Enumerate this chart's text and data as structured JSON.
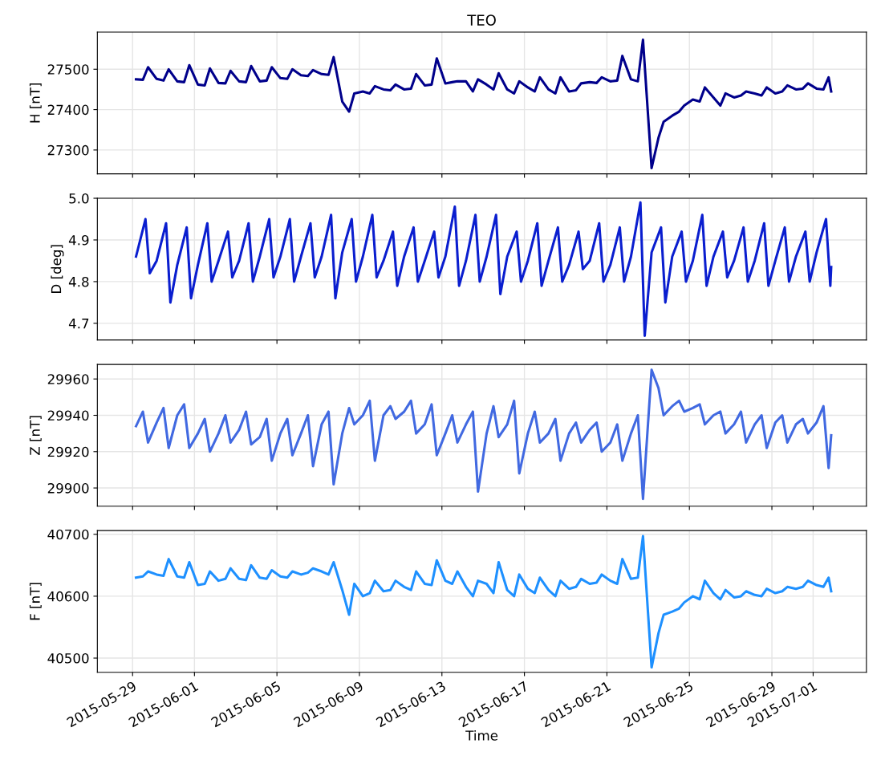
{
  "chart_data": [
    {
      "type": "line",
      "title": "TEO",
      "ylabel": "H [nT]",
      "tick_labels": "y",
      "grid": true,
      "marker": "none",
      "line_style": "solid",
      "xlim": [
        "2015-05-27T07:00",
        "2015-07-03T14:00"
      ],
      "xticks": [
        "2015-05-29",
        "2015-06-01",
        "2015-06-05",
        "2015-06-09",
        "2015-06-13",
        "2015-06-17",
        "2015-06-21",
        "2015-06-25",
        "2015-06-29",
        "2015-07-01"
      ],
      "ylim": [
        27241,
        27592
      ],
      "yticks": [
        27300,
        27400,
        27500
      ],
      "x": [
        "2015-05-29T04:00",
        "2015-05-29T12:00",
        "2015-05-29T18:00",
        "2015-05-30T04:00",
        "2015-05-30T12:00",
        "2015-05-30T18:00",
        "2015-05-31T04:00",
        "2015-05-31T12:00",
        "2015-05-31T18:00",
        "2015-06-01T04:00",
        "2015-06-01T12:00",
        "2015-06-01T18:00",
        "2015-06-02T04:00",
        "2015-06-02T12:00",
        "2015-06-02T18:00",
        "2015-06-03T04:00",
        "2015-06-03T12:00",
        "2015-06-03T18:00",
        "2015-06-04T04:00",
        "2015-06-04T12:00",
        "2015-06-04T18:00",
        "2015-06-05T04:00",
        "2015-06-05T12:00",
        "2015-06-05T18:00",
        "2015-06-06T04:00",
        "2015-06-06T12:00",
        "2015-06-06T18:00",
        "2015-06-07T04:00",
        "2015-06-07T12:00",
        "2015-06-07T18:00",
        "2015-06-08T04:00",
        "2015-06-08T12:00",
        "2015-06-08T18:00",
        "2015-06-09T04:00",
        "2015-06-09T12:00",
        "2015-06-09T18:00",
        "2015-06-10T04:00",
        "2015-06-10T12:00",
        "2015-06-10T18:00",
        "2015-06-11T04:00",
        "2015-06-11T12:00",
        "2015-06-11T18:00",
        "2015-06-12T04:00",
        "2015-06-12T12:00",
        "2015-06-12T18:00",
        "2015-06-13T04:00",
        "2015-06-13T12:00",
        "2015-06-13T18:00",
        "2015-06-14T04:00",
        "2015-06-14T12:00",
        "2015-06-14T18:00",
        "2015-06-15T04:00",
        "2015-06-15T12:00",
        "2015-06-15T18:00",
        "2015-06-16T04:00",
        "2015-06-16T12:00",
        "2015-06-16T18:00",
        "2015-06-17T04:00",
        "2015-06-17T12:00",
        "2015-06-17T18:00",
        "2015-06-18T04:00",
        "2015-06-18T12:00",
        "2015-06-18T18:00",
        "2015-06-19T04:00",
        "2015-06-19T12:00",
        "2015-06-19T18:00",
        "2015-06-20T04:00",
        "2015-06-20T12:00",
        "2015-06-20T18:00",
        "2015-06-21T04:00",
        "2015-06-21T12:00",
        "2015-06-21T18:00",
        "2015-06-22T04:00",
        "2015-06-22T12:00",
        "2015-06-22T18:00",
        "2015-06-23T04:00",
        "2015-06-23T12:00",
        "2015-06-23T18:00",
        "2015-06-24T04:00",
        "2015-06-24T12:00",
        "2015-06-24T18:00",
        "2015-06-25T04:00",
        "2015-06-25T12:00",
        "2015-06-25T18:00",
        "2015-06-26T04:00",
        "2015-06-26T12:00",
        "2015-06-26T18:00",
        "2015-06-27T04:00",
        "2015-06-27T12:00",
        "2015-06-27T18:00",
        "2015-06-28T04:00",
        "2015-06-28T12:00",
        "2015-06-28T18:00",
        "2015-06-29T04:00",
        "2015-06-29T12:00",
        "2015-06-29T18:00",
        "2015-06-30T04:00",
        "2015-06-30T12:00",
        "2015-06-30T18:00",
        "2015-07-01T04:00",
        "2015-07-01T12:00",
        "2015-07-01T18:00",
        "2015-07-01T21:00"
      ],
      "series": [
        {
          "color": "#00008b",
          "values": [
            27475,
            27474,
            27505,
            27476,
            27472,
            27500,
            27470,
            27468,
            27510,
            27462,
            27460,
            27502,
            27466,
            27465,
            27496,
            27470,
            27468,
            27508,
            27470,
            27472,
            27505,
            27478,
            27476,
            27500,
            27485,
            27483,
            27498,
            27488,
            27486,
            27530,
            27420,
            27395,
            27440,
            27445,
            27440,
            27458,
            27450,
            27448,
            27462,
            27450,
            27452,
            27488,
            27460,
            27462,
            27527,
            27465,
            27468,
            27470,
            27470,
            27445,
            27475,
            27462,
            27450,
            27490,
            27450,
            27440,
            27470,
            27455,
            27445,
            27480,
            27450,
            27440,
            27480,
            27445,
            27448,
            27465,
            27468,
            27466,
            27480,
            27470,
            27472,
            27533,
            27475,
            27470,
            27573,
            27255,
            27330,
            27370,
            27385,
            27395,
            27410,
            27425,
            27420,
            27455,
            27430,
            27410,
            27440,
            27430,
            27435,
            27445,
            27440,
            27435,
            27455,
            27440,
            27445,
            27460,
            27450,
            27452,
            27465,
            27452,
            27450,
            27480,
            27445
          ]
        }
      ]
    },
    {
      "type": "line",
      "ylabel": "D [deg]",
      "tick_labels": "y",
      "grid": true,
      "marker": "none",
      "line_style": "solid",
      "xlim": [
        "2015-05-27T07:00",
        "2015-07-03T14:00"
      ],
      "xticks": [
        "2015-05-29",
        "2015-06-01",
        "2015-06-05",
        "2015-06-09",
        "2015-06-13",
        "2015-06-17",
        "2015-06-21",
        "2015-06-25",
        "2015-06-29",
        "2015-07-01"
      ],
      "ylim": [
        4.66,
        5.0
      ],
      "yticks": [
        {
          "value": 4.7,
          "label": "4.7"
        },
        {
          "value": 4.8,
          "label": "4.8"
        },
        {
          "value": 4.9,
          "label": "4.9"
        },
        {
          "value": 5.0,
          "label": "5.0"
        }
      ],
      "x": [
        "2015-05-29T04:00",
        "2015-05-29T15:00",
        "2015-05-29T20:00",
        "2015-05-30T04:00",
        "2015-05-30T15:00",
        "2015-05-30T20:00",
        "2015-05-31T04:00",
        "2015-05-31T15:00",
        "2015-05-31T20:00",
        "2015-06-01T04:00",
        "2015-06-01T15:00",
        "2015-06-01T20:00",
        "2015-06-02T04:00",
        "2015-06-02T15:00",
        "2015-06-02T20:00",
        "2015-06-03T04:00",
        "2015-06-03T15:00",
        "2015-06-03T20:00",
        "2015-06-04T04:00",
        "2015-06-04T15:00",
        "2015-06-04T20:00",
        "2015-06-05T04:00",
        "2015-06-05T15:00",
        "2015-06-05T20:00",
        "2015-06-06T04:00",
        "2015-06-06T15:00",
        "2015-06-06T20:00",
        "2015-06-07T04:00",
        "2015-06-07T15:00",
        "2015-06-07T20:00",
        "2015-06-08T04:00",
        "2015-06-08T15:00",
        "2015-06-08T20:00",
        "2015-06-09T04:00",
        "2015-06-09T15:00",
        "2015-06-09T20:00",
        "2015-06-10T04:00",
        "2015-06-10T15:00",
        "2015-06-10T20:00",
        "2015-06-11T04:00",
        "2015-06-11T15:00",
        "2015-06-11T20:00",
        "2015-06-12T04:00",
        "2015-06-12T15:00",
        "2015-06-12T20:00",
        "2015-06-13T04:00",
        "2015-06-13T15:00",
        "2015-06-13T20:00",
        "2015-06-14T04:00",
        "2015-06-14T15:00",
        "2015-06-14T20:00",
        "2015-06-15T04:00",
        "2015-06-15T15:00",
        "2015-06-15T20:00",
        "2015-06-16T04:00",
        "2015-06-16T15:00",
        "2015-06-16T20:00",
        "2015-06-17T04:00",
        "2015-06-17T15:00",
        "2015-06-17T20:00",
        "2015-06-18T04:00",
        "2015-06-18T15:00",
        "2015-06-18T20:00",
        "2015-06-19T04:00",
        "2015-06-19T15:00",
        "2015-06-19T20:00",
        "2015-06-20T04:00",
        "2015-06-20T15:00",
        "2015-06-20T20:00",
        "2015-06-21T04:00",
        "2015-06-21T15:00",
        "2015-06-21T20:00",
        "2015-06-22T04:00",
        "2015-06-22T15:00",
        "2015-06-22T20:00",
        "2015-06-23T04:00",
        "2015-06-23T15:00",
        "2015-06-23T20:00",
        "2015-06-24T04:00",
        "2015-06-24T15:00",
        "2015-06-24T20:00",
        "2015-06-25T04:00",
        "2015-06-25T15:00",
        "2015-06-25T20:00",
        "2015-06-26T04:00",
        "2015-06-26T15:00",
        "2015-06-26T20:00",
        "2015-06-27T04:00",
        "2015-06-27T15:00",
        "2015-06-27T20:00",
        "2015-06-28T04:00",
        "2015-06-28T15:00",
        "2015-06-28T20:00",
        "2015-06-29T04:00",
        "2015-06-29T15:00",
        "2015-06-29T20:00",
        "2015-06-30T04:00",
        "2015-06-30T15:00",
        "2015-06-30T20:00",
        "2015-07-01T04:00",
        "2015-07-01T15:00",
        "2015-07-01T20:00",
        "2015-07-01T21:00"
      ],
      "series": [
        {
          "color": "#0a1ecf",
          "values": [
            4.86,
            4.95,
            4.82,
            4.85,
            4.94,
            4.75,
            4.84,
            4.93,
            4.76,
            4.84,
            4.94,
            4.8,
            4.85,
            4.92,
            4.81,
            4.85,
            4.94,
            4.8,
            4.86,
            4.95,
            4.81,
            4.86,
            4.95,
            4.8,
            4.86,
            4.94,
            4.81,
            4.86,
            4.96,
            4.76,
            4.87,
            4.95,
            4.8,
            4.86,
            4.96,
            4.81,
            4.85,
            4.92,
            4.79,
            4.86,
            4.93,
            4.8,
            4.85,
            4.92,
            4.81,
            4.86,
            4.98,
            4.79,
            4.85,
            4.96,
            4.8,
            4.86,
            4.96,
            4.77,
            4.86,
            4.92,
            4.8,
            4.85,
            4.94,
            4.79,
            4.85,
            4.93,
            4.8,
            4.84,
            4.92,
            4.83,
            4.85,
            4.94,
            4.8,
            4.84,
            4.93,
            4.8,
            4.86,
            4.99,
            4.67,
            4.87,
            4.93,
            4.75,
            4.86,
            4.92,
            4.8,
            4.85,
            4.96,
            4.79,
            4.86,
            4.92,
            4.81,
            4.85,
            4.93,
            4.8,
            4.85,
            4.94,
            4.79,
            4.85,
            4.93,
            4.8,
            4.86,
            4.92,
            4.8,
            4.87,
            4.95,
            4.79,
            4.835
          ]
        }
      ]
    },
    {
      "type": "line",
      "ylabel": "Z [nT]",
      "tick_labels": "y",
      "grid": true,
      "marker": "none",
      "line_style": "solid",
      "xlim": [
        "2015-05-27T07:00",
        "2015-07-03T14:00"
      ],
      "xticks": [
        "2015-05-29",
        "2015-06-01",
        "2015-06-05",
        "2015-06-09",
        "2015-06-13",
        "2015-06-17",
        "2015-06-21",
        "2015-06-25",
        "2015-06-29",
        "2015-07-01"
      ],
      "ylim": [
        29890,
        29968
      ],
      "yticks": [
        29900,
        29920,
        29940,
        29960
      ],
      "x": [
        "2015-05-29T04:00",
        "2015-05-29T12:00",
        "2015-05-29T18:00",
        "2015-05-30T04:00",
        "2015-05-30T12:00",
        "2015-05-30T18:00",
        "2015-05-31T04:00",
        "2015-05-31T12:00",
        "2015-05-31T18:00",
        "2015-06-01T04:00",
        "2015-06-01T12:00",
        "2015-06-01T18:00",
        "2015-06-02T04:00",
        "2015-06-02T12:00",
        "2015-06-02T18:00",
        "2015-06-03T04:00",
        "2015-06-03T12:00",
        "2015-06-03T18:00",
        "2015-06-04T04:00",
        "2015-06-04T12:00",
        "2015-06-04T18:00",
        "2015-06-05T04:00",
        "2015-06-05T12:00",
        "2015-06-05T18:00",
        "2015-06-06T04:00",
        "2015-06-06T12:00",
        "2015-06-06T18:00",
        "2015-06-07T04:00",
        "2015-06-07T12:00",
        "2015-06-07T18:00",
        "2015-06-08T04:00",
        "2015-06-08T12:00",
        "2015-06-08T18:00",
        "2015-06-09T04:00",
        "2015-06-09T12:00",
        "2015-06-09T18:00",
        "2015-06-10T04:00",
        "2015-06-10T12:00",
        "2015-06-10T18:00",
        "2015-06-11T04:00",
        "2015-06-11T12:00",
        "2015-06-11T18:00",
        "2015-06-12T04:00",
        "2015-06-12T12:00",
        "2015-06-12T18:00",
        "2015-06-13T04:00",
        "2015-06-13T12:00",
        "2015-06-13T18:00",
        "2015-06-14T04:00",
        "2015-06-14T12:00",
        "2015-06-14T18:00",
        "2015-06-15T04:00",
        "2015-06-15T12:00",
        "2015-06-15T18:00",
        "2015-06-16T04:00",
        "2015-06-16T12:00",
        "2015-06-16T18:00",
        "2015-06-17T04:00",
        "2015-06-17T12:00",
        "2015-06-17T18:00",
        "2015-06-18T04:00",
        "2015-06-18T12:00",
        "2015-06-18T18:00",
        "2015-06-19T04:00",
        "2015-06-19T12:00",
        "2015-06-19T18:00",
        "2015-06-20T04:00",
        "2015-06-20T12:00",
        "2015-06-20T18:00",
        "2015-06-21T04:00",
        "2015-06-21T12:00",
        "2015-06-21T18:00",
        "2015-06-22T04:00",
        "2015-06-22T12:00",
        "2015-06-22T18:00",
        "2015-06-23T04:00",
        "2015-06-23T12:00",
        "2015-06-23T18:00",
        "2015-06-24T04:00",
        "2015-06-24T12:00",
        "2015-06-24T18:00",
        "2015-06-25T04:00",
        "2015-06-25T12:00",
        "2015-06-25T18:00",
        "2015-06-26T04:00",
        "2015-06-26T12:00",
        "2015-06-26T18:00",
        "2015-06-27T04:00",
        "2015-06-27T12:00",
        "2015-06-27T18:00",
        "2015-06-28T04:00",
        "2015-06-28T12:00",
        "2015-06-28T18:00",
        "2015-06-29T04:00",
        "2015-06-29T12:00",
        "2015-06-29T18:00",
        "2015-06-30T04:00",
        "2015-06-30T12:00",
        "2015-06-30T18:00",
        "2015-07-01T04:00",
        "2015-07-01T12:00",
        "2015-07-01T18:00",
        "2015-07-01T21:00"
      ],
      "series": [
        {
          "color": "#4169e1",
          "values": [
            29934,
            29942,
            29925,
            29936,
            29944,
            29922,
            29940,
            29946,
            29922,
            29930,
            29938,
            29920,
            29930,
            29940,
            29925,
            29932,
            29942,
            29924,
            29928,
            29938,
            29915,
            29930,
            29938,
            29918,
            29930,
            29940,
            29912,
            29935,
            29942,
            29902,
            29930,
            29944,
            29935,
            29940,
            29948,
            29915,
            29940,
            29945,
            29938,
            29942,
            29948,
            29930,
            29935,
            29946,
            29918,
            29930,
            29940,
            29925,
            29935,
            29942,
            29898,
            29930,
            29945,
            29928,
            29935,
            29948,
            29908,
            29930,
            29942,
            29925,
            29930,
            29938,
            29915,
            29930,
            29936,
            29925,
            29932,
            29936,
            29920,
            29925,
            29935,
            29915,
            29930,
            29940,
            29894,
            29965,
            29955,
            29940,
            29945,
            29948,
            29942,
            29944,
            29946,
            29935,
            29940,
            29942,
            29930,
            29935,
            29942,
            29925,
            29935,
            29940,
            29922,
            29936,
            29940,
            29925,
            29935,
            29938,
            29930,
            29936,
            29945,
            29911,
            29929
          ]
        }
      ]
    },
    {
      "type": "line",
      "ylabel": "F [nT]",
      "xlabel": "Time",
      "grid": true,
      "marker": "none",
      "line_style": "solid",
      "xlim": [
        "2015-05-27T07:00",
        "2015-07-03T14:00"
      ],
      "xticks": [
        "2015-05-29",
        "2015-06-01",
        "2015-06-05",
        "2015-06-09",
        "2015-06-13",
        "2015-06-17",
        "2015-06-21",
        "2015-06-25",
        "2015-06-29",
        "2015-07-01"
      ],
      "ylim": [
        40477,
        40706
      ],
      "yticks": [
        40500,
        40600,
        40700
      ],
      "x": [
        "2015-05-29T04:00",
        "2015-05-29T12:00",
        "2015-05-29T18:00",
        "2015-05-30T04:00",
        "2015-05-30T12:00",
        "2015-05-30T18:00",
        "2015-05-31T04:00",
        "2015-05-31T12:00",
        "2015-05-31T18:00",
        "2015-06-01T04:00",
        "2015-06-01T12:00",
        "2015-06-01T18:00",
        "2015-06-02T04:00",
        "2015-06-02T12:00",
        "2015-06-02T18:00",
        "2015-06-03T04:00",
        "2015-06-03T12:00",
        "2015-06-03T18:00",
        "2015-06-04T04:00",
        "2015-06-04T12:00",
        "2015-06-04T18:00",
        "2015-06-05T04:00",
        "2015-06-05T12:00",
        "2015-06-05T18:00",
        "2015-06-06T04:00",
        "2015-06-06T12:00",
        "2015-06-06T18:00",
        "2015-06-07T04:00",
        "2015-06-07T12:00",
        "2015-06-07T18:00",
        "2015-06-08T04:00",
        "2015-06-08T12:00",
        "2015-06-08T18:00",
        "2015-06-09T04:00",
        "2015-06-09T12:00",
        "2015-06-09T18:00",
        "2015-06-10T04:00",
        "2015-06-10T12:00",
        "2015-06-10T18:00",
        "2015-06-11T04:00",
        "2015-06-11T12:00",
        "2015-06-11T18:00",
        "2015-06-12T04:00",
        "2015-06-12T12:00",
        "2015-06-12T18:00",
        "2015-06-13T04:00",
        "2015-06-13T12:00",
        "2015-06-13T18:00",
        "2015-06-14T04:00",
        "2015-06-14T12:00",
        "2015-06-14T18:00",
        "2015-06-15T04:00",
        "2015-06-15T12:00",
        "2015-06-15T18:00",
        "2015-06-16T04:00",
        "2015-06-16T12:00",
        "2015-06-16T18:00",
        "2015-06-17T04:00",
        "2015-06-17T12:00",
        "2015-06-17T18:00",
        "2015-06-18T04:00",
        "2015-06-18T12:00",
        "2015-06-18T18:00",
        "2015-06-19T04:00",
        "2015-06-19T12:00",
        "2015-06-19T18:00",
        "2015-06-20T04:00",
        "2015-06-20T12:00",
        "2015-06-20T18:00",
        "2015-06-21T04:00",
        "2015-06-21T12:00",
        "2015-06-21T18:00",
        "2015-06-22T04:00",
        "2015-06-22T12:00",
        "2015-06-22T18:00",
        "2015-06-23T04:00",
        "2015-06-23T12:00",
        "2015-06-23T18:00",
        "2015-06-24T04:00",
        "2015-06-24T12:00",
        "2015-06-24T18:00",
        "2015-06-25T04:00",
        "2015-06-25T12:00",
        "2015-06-25T18:00",
        "2015-06-26T04:00",
        "2015-06-26T12:00",
        "2015-06-26T18:00",
        "2015-06-27T04:00",
        "2015-06-27T12:00",
        "2015-06-27T18:00",
        "2015-06-28T04:00",
        "2015-06-28T12:00",
        "2015-06-28T18:00",
        "2015-06-29T04:00",
        "2015-06-29T12:00",
        "2015-06-29T18:00",
        "2015-06-30T04:00",
        "2015-06-30T12:00",
        "2015-06-30T18:00",
        "2015-07-01T04:00",
        "2015-07-01T12:00",
        "2015-07-01T18:00",
        "2015-07-01T21:00"
      ],
      "series": [
        {
          "color": "#1e90ff",
          "values": [
            40630,
            40632,
            40640,
            40635,
            40633,
            40660,
            40632,
            40630,
            40655,
            40618,
            40620,
            40640,
            40625,
            40628,
            40645,
            40628,
            40626,
            40650,
            40630,
            40628,
            40642,
            40632,
            40630,
            40640,
            40635,
            40638,
            40645,
            40640,
            40635,
            40655,
            40610,
            40570,
            40620,
            40600,
            40605,
            40625,
            40608,
            40610,
            40625,
            40615,
            40610,
            40640,
            40620,
            40618,
            40658,
            40625,
            40620,
            40640,
            40615,
            40600,
            40625,
            40620,
            40605,
            40655,
            40610,
            40600,
            40635,
            40612,
            40605,
            40630,
            40610,
            40600,
            40625,
            40612,
            40615,
            40628,
            40620,
            40622,
            40635,
            40625,
            40620,
            40660,
            40628,
            40630,
            40697,
            40485,
            40540,
            40570,
            40575,
            40580,
            40590,
            40600,
            40595,
            40625,
            40605,
            40595,
            40610,
            40598,
            40600,
            40608,
            40602,
            40600,
            40612,
            40605,
            40608,
            40615,
            40612,
            40615,
            40625,
            40618,
            40615,
            40630,
            40608
          ]
        }
      ]
    }
  ]
}
